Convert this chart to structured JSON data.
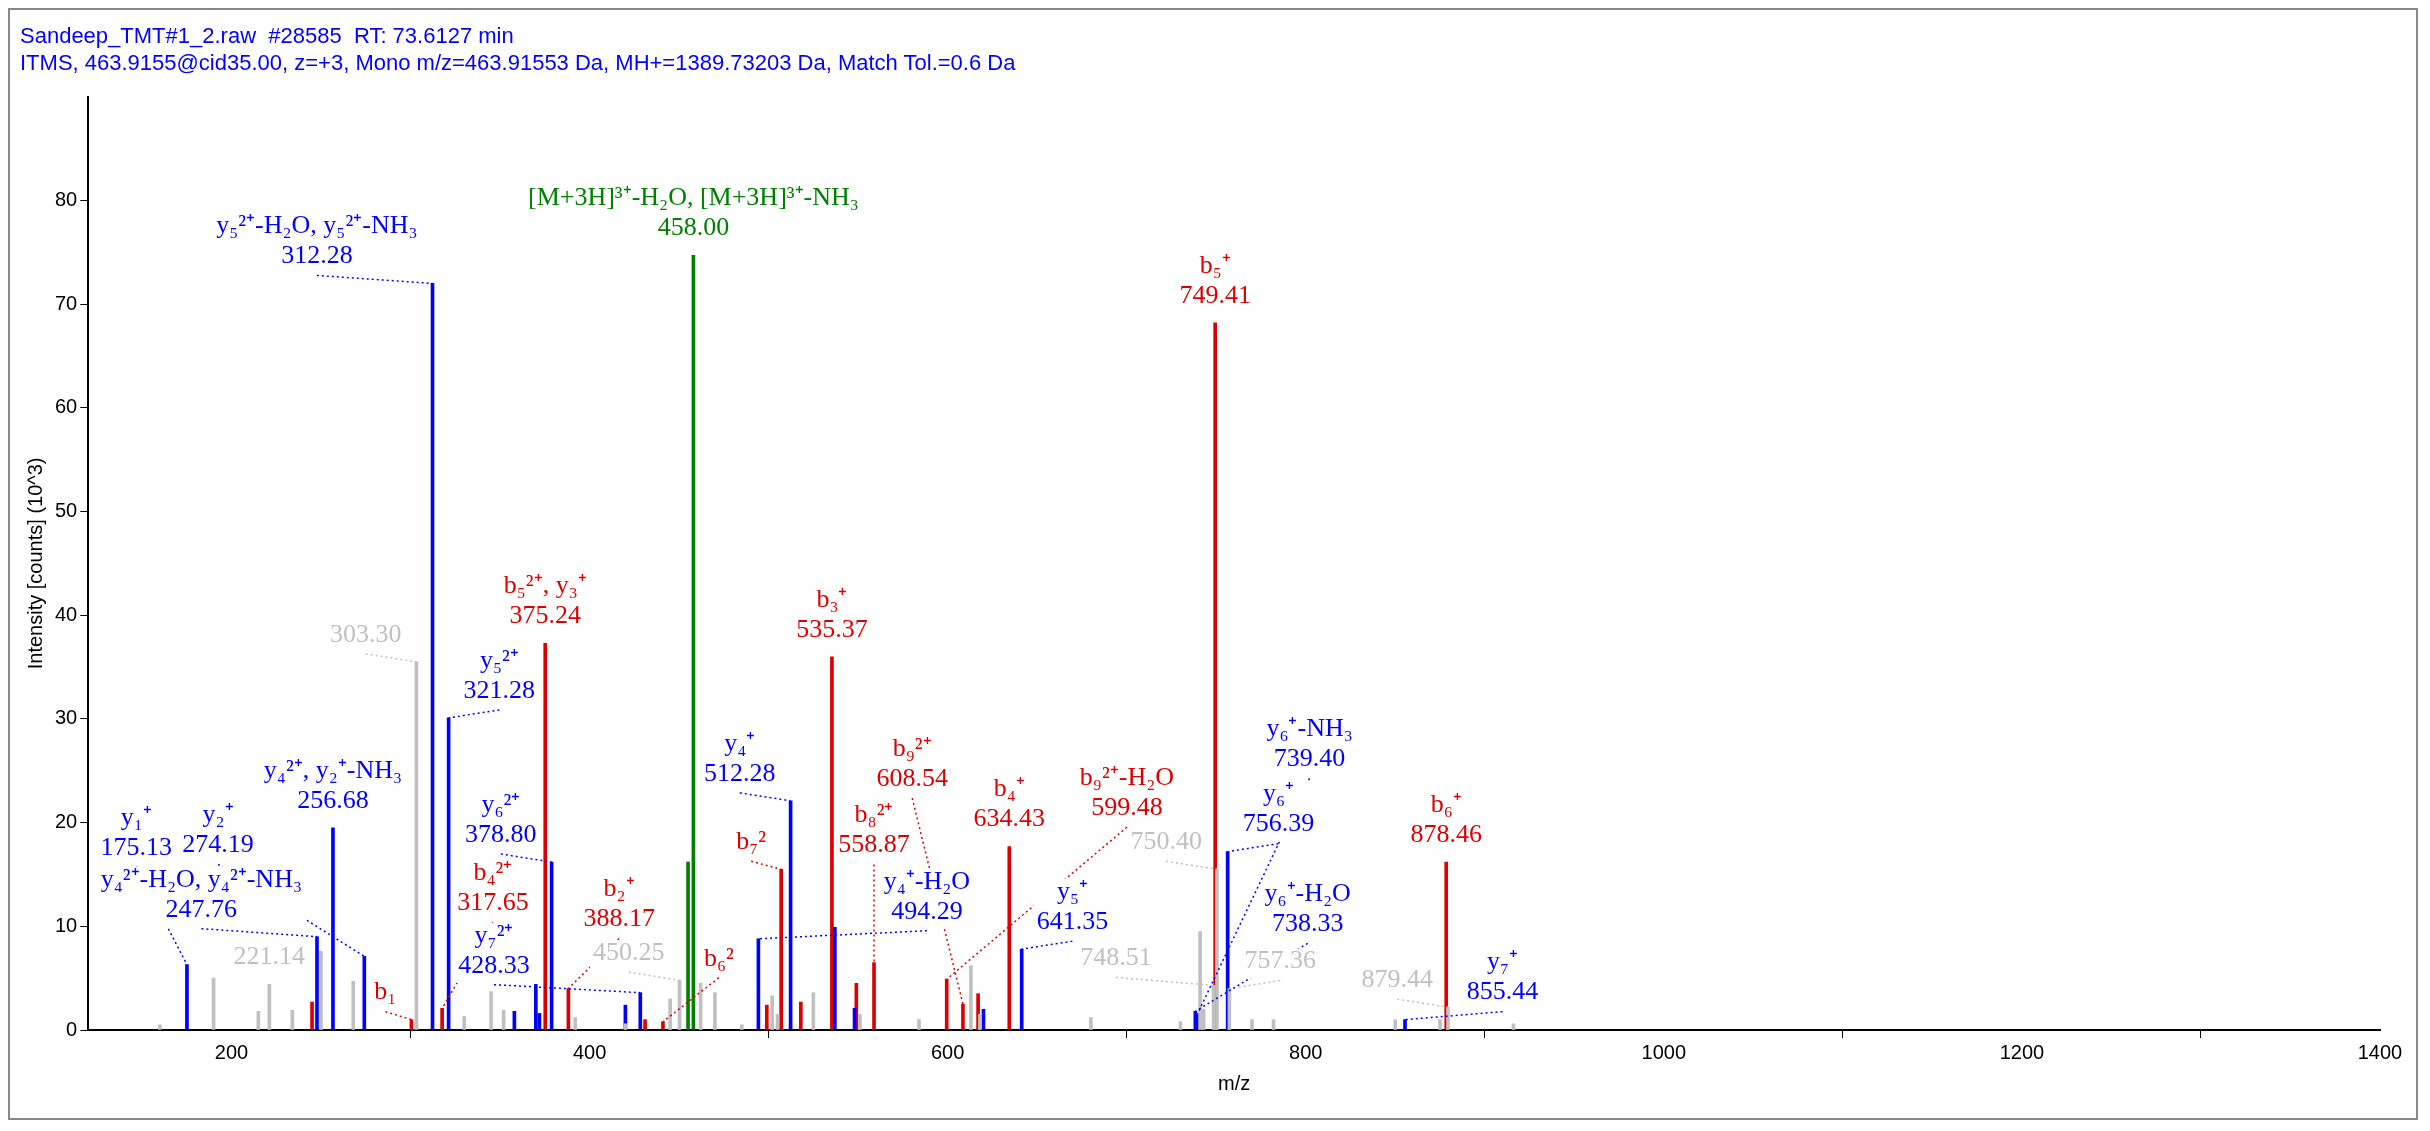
{
  "chart_data": {
    "type": "bar",
    "title": "Sandeep_TMT#1_2.raw  #28585  RT: 73.6127 min",
    "subtitle": "ITMS, 463.9155@cid35.00, z=+3, Mono m/z=463.91553 Da, MH+=1389.73203 Da, Match Tol.=0.6 Da",
    "xlabel": "m/z",
    "ylabel": "Intensity [counts] (10^3)",
    "xlim": [
      120,
      1400
    ],
    "xticks": [
      200,
      400,
      600,
      800,
      1000,
      1200,
      1400
    ],
    "ylim": [
      0,
      90
    ],
    "yticks": [
      0,
      10,
      20,
      30,
      40,
      50,
      60,
      70,
      80
    ],
    "grid": false,
    "legend": false,
    "series": [
      {
        "color": "#c0c0c0",
        "x": [
          160,
          190,
          215,
          221.14,
          234,
          250,
          268,
          303.3,
          330,
          345,
          352,
          392,
          420,
          445,
          450.25,
          462,
          470,
          485,
          502,
          505,
          525,
          551,
          584,
          613,
          618,
          680,
          730,
          741,
          743,
          748.51,
          750.4,
          757.36,
          770,
          782,
          850,
          875,
          879.44,
          916
        ],
        "values": [
          0.5,
          5.0,
          1.8,
          4.4,
          1.9,
          7.6,
          4.7,
          35.5,
          1.3,
          3.7,
          1.9,
          1.2,
          0.6,
          3.0,
          4.8,
          4.5,
          3.6,
          0.5,
          3.3,
          1.5,
          3.6,
          1.5,
          1.0,
          6.2,
          1.5,
          1.2,
          0.8,
          9.5,
          2.0,
          4.3,
          15.5,
          4.0,
          1.0,
          1.0,
          1.0,
          1.0,
          2.2,
          0.6
        ]
      },
      {
        "color": "#0000ff",
        "x": [
          175.13,
          247.76,
          256.68,
          274.19,
          312.28,
          321.28,
          358,
          370,
          372,
          378.8,
          420,
          428.33,
          494.29,
          512.28,
          537,
          548,
          620,
          641.35,
          738.33,
          739.4,
          756.39,
          855.44
        ],
        "values": [
          6.3,
          9.0,
          19.5,
          7.1,
          72.0,
          30.1,
          1.8,
          4.4,
          1.6,
          16.2,
          2.4,
          3.6,
          8.8,
          22.1,
          9.9,
          2.1,
          2.0,
          7.8,
          1.8,
          1.5,
          17.2,
          1.0
        ]
      },
      {
        "color": "#dd0000",
        "x": [
          245,
          300.5,
          317.65,
          375.24,
          388.17,
          431,
          441,
          499,
          507,
          518,
          535.37,
          549,
          558.87,
          599.48,
          608.54,
          617,
          634.43,
          749.41,
          878.46
        ],
        "values": [
          2.7,
          1.0,
          2.1,
          37.3,
          4.0,
          1.0,
          0.8,
          2.4,
          15.5,
          2.7,
          36.0,
          4.5,
          6.5,
          4.9,
          2.5,
          3.5,
          17.7,
          68.2,
          16.2
        ]
      },
      {
        "color": "#008000",
        "x": [
          455,
          458.0
        ],
        "values": [
          16.2,
          74.7
        ]
      }
    ],
    "annotations": [
      {
        "text": "y₁⁺\n175.13",
        "x": 175.13,
        "y": 6.3
      },
      {
        "text": "221.14",
        "x": 221.14,
        "y": 4.4
      },
      {
        "text": "y₄²⁺-H₂O, y₄²⁺-NH₃\n247.76",
        "x": 247.76,
        "y": 9.0
      },
      {
        "text": "y₄²⁺, y₂⁺-NH₃\n256.68",
        "x": 256.68,
        "y": 19.5
      },
      {
        "text": "y₂⁺\n274.19",
        "x": 274.19,
        "y": 7.1
      },
      {
        "text": "b₁",
        "x": 300.5,
        "y": 1.0
      },
      {
        "text": "303.30",
        "x": 303.3,
        "y": 35.5
      },
      {
        "text": "y₅²⁺-H₂O, y₅²⁺-NH₃\n312.28",
        "x": 312.28,
        "y": 72.0
      },
      {
        "text": "b₄²⁺\n317.65",
        "x": 317.65,
        "y": 2.1
      },
      {
        "text": "y₅²⁺\n321.28",
        "x": 321.28,
        "y": 30.1
      },
      {
        "text": "b₅²⁺, y₃⁺\n375.24",
        "x": 375.24,
        "y": 37.3
      },
      {
        "text": "y₆²⁺\n378.80",
        "x": 378.8,
        "y": 16.2
      },
      {
        "text": "b₂⁺\n388.17",
        "x": 388.17,
        "y": 4.0
      },
      {
        "text": "y₇²⁺\n428.33",
        "x": 428.33,
        "y": 3.6
      },
      {
        "text": "b₆²",
        "x": 441,
        "y": 0.8
      },
      {
        "text": "450.25",
        "x": 450.25,
        "y": 4.8
      },
      {
        "text": "[M+3H]³⁺-H₂O, [M+3H]³⁺-NH₃\n458.00",
        "x": 458.0,
        "y": 74.7
      },
      {
        "text": "y₄⁺-H₂O\n494.29",
        "x": 494.29,
        "y": 8.8
      },
      {
        "text": "b₇²",
        "x": 507,
        "y": 15.5
      },
      {
        "text": "y₄⁺\n512.28",
        "x": 512.28,
        "y": 22.1
      },
      {
        "text": "b₃⁺\n535.37",
        "x": 535.37,
        "y": 36.0
      },
      {
        "text": "b₈²⁺\n558.87",
        "x": 558.87,
        "y": 6.5
      },
      {
        "text": "b₉²⁺-H₂O\n599.48",
        "x": 599.48,
        "y": 4.9
      },
      {
        "text": "b₉²⁺\n608.54",
        "x": 608.54,
        "y": 2.5
      },
      {
        "text": "b₄⁺\n634.43",
        "x": 634.43,
        "y": 17.7
      },
      {
        "text": "y₅⁺\n641.35",
        "x": 641.35,
        "y": 7.8
      },
      {
        "text": "y₆⁺-H₂O\n738.33",
        "x": 738.33,
        "y": 1.8
      },
      {
        "text": "y₆⁺-NH₃\n739.40",
        "x": 739.4,
        "y": 1.5
      },
      {
        "text": "748.51",
        "x": 748.51,
        "y": 4.3
      },
      {
        "text": "b₅⁺\n749.41",
        "x": 749.41,
        "y": 68.2
      },
      {
        "text": "750.40",
        "x": 750.4,
        "y": 15.5
      },
      {
        "text": "y₆⁺\n756.39",
        "x": 756.39,
        "y": 17.2
      },
      {
        "text": "757.36",
        "x": 757.36,
        "y": 4.0
      },
      {
        "text": "y₇⁺\n855.44",
        "x": 855.44,
        "y": 1.0
      },
      {
        "text": "b₆⁺\n878.46",
        "x": 878.46,
        "y": 16.2
      },
      {
        "text": "879.44",
        "x": 879.44,
        "y": 2.2
      }
    ]
  }
}
